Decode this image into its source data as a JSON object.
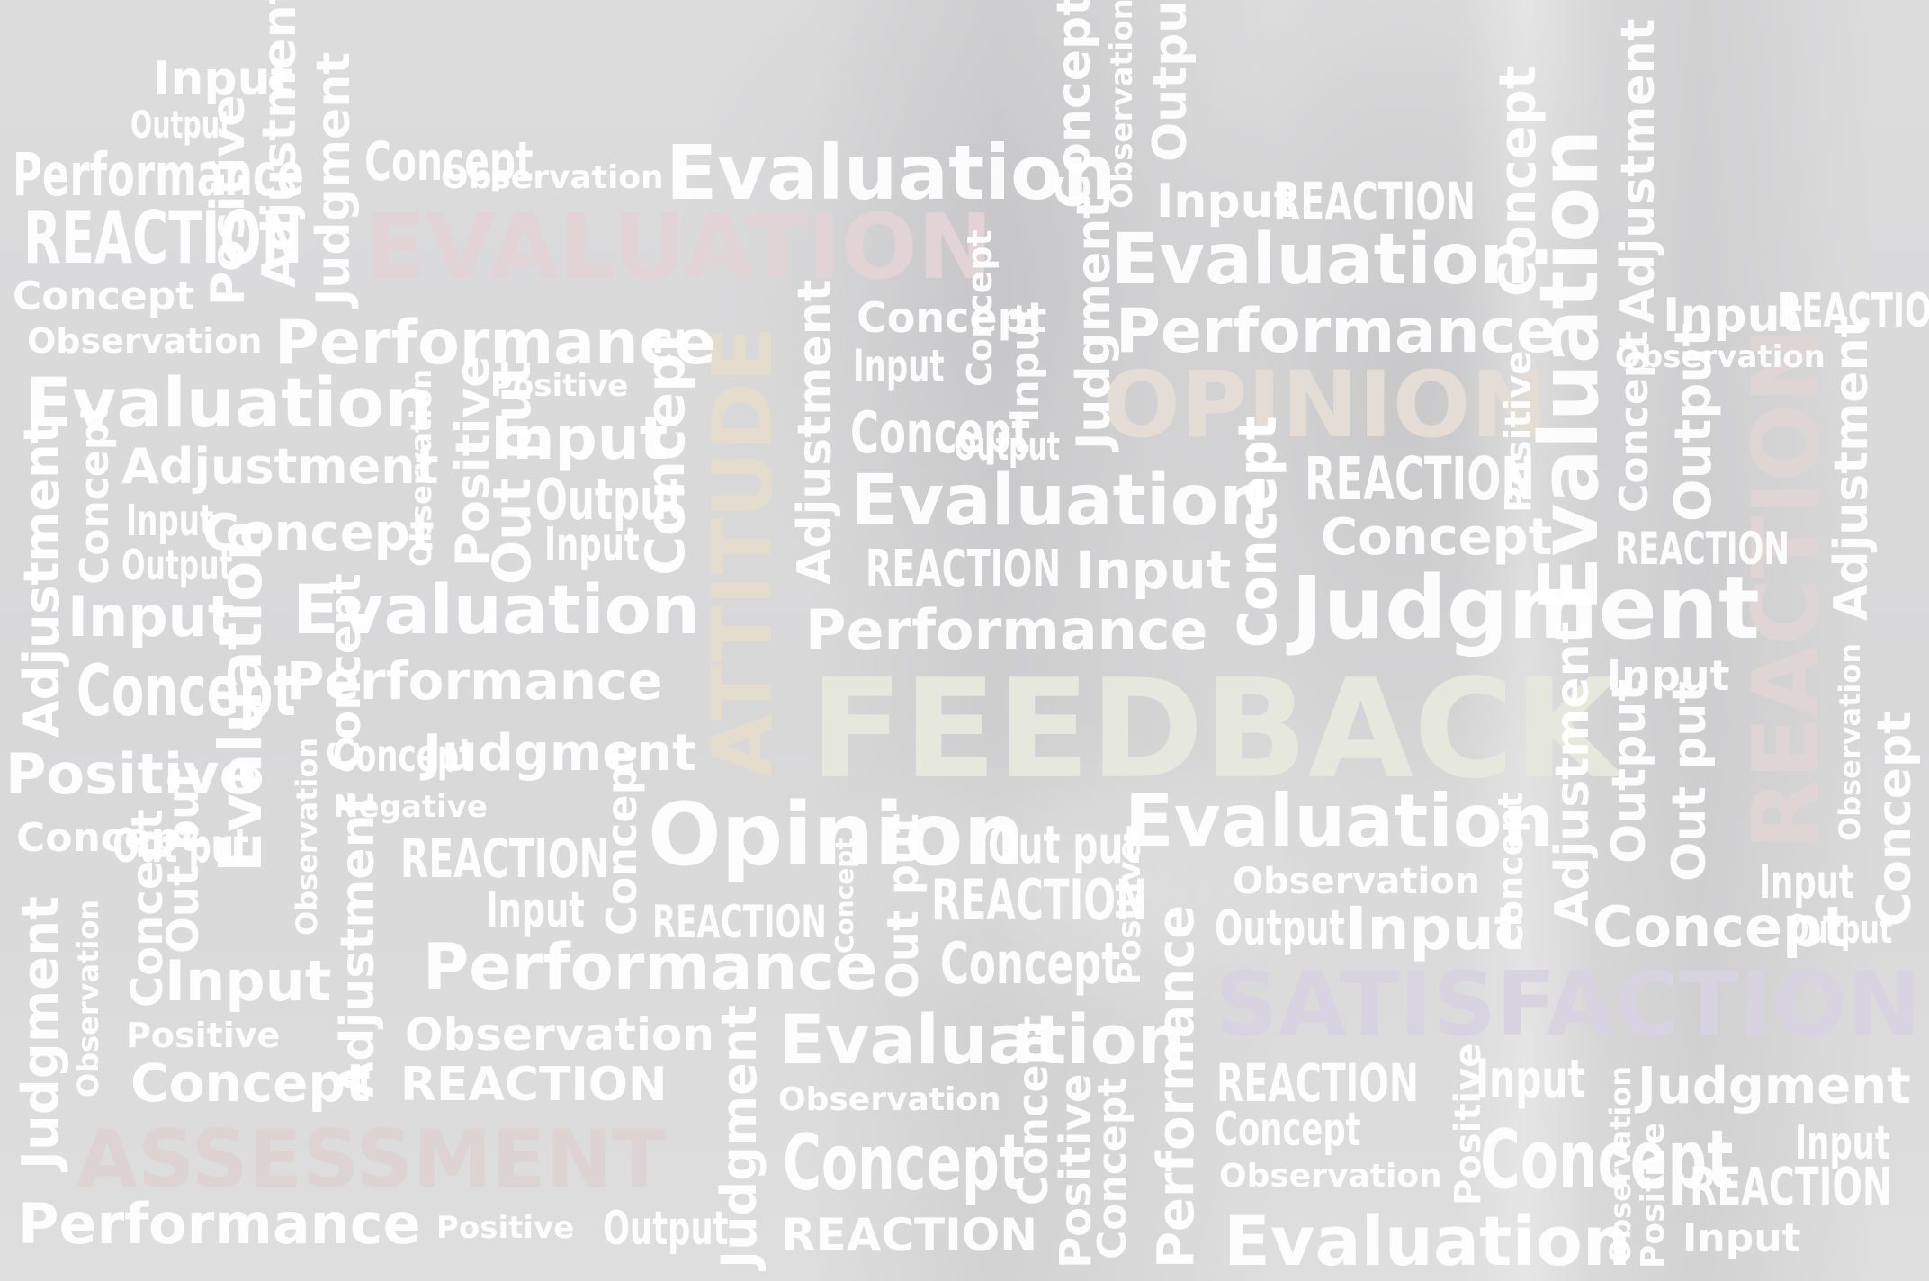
{
  "image": {
    "kind": "word-cloud photo",
    "colors": {
      "background": "#d9d9da",
      "words": "#ffffff",
      "feedback": "#e6e8dd",
      "attitude": "#e4dccd",
      "opinion": "#e3ddd6",
      "evaluation": "#e1d3d6",
      "reaction": "#dfd5d5",
      "satisfaction": "#d7d3e0",
      "assessment": "#ddd3d3"
    }
  },
  "big_words": {
    "feedback": "FEEDBACK",
    "attitude": "ATTITUDE",
    "opinion": "OPINION",
    "evaluation": "EVALUATION",
    "reaction": "REACTION",
    "satisfaction": "SATISFACTION",
    "assessment": "ASSESSMENT"
  },
  "words": {
    "input": "Input",
    "output": "Output",
    "out_put": "Out put",
    "performance": "Performance",
    "reaction": "REACTION",
    "concept": "Concept",
    "observation": "Observation",
    "evaluation": "Evaluation",
    "adjustment": "Adjustment",
    "positive": "Positive",
    "negative": "Negative",
    "judgment": "Judgment",
    "opinion": "Opinion"
  }
}
